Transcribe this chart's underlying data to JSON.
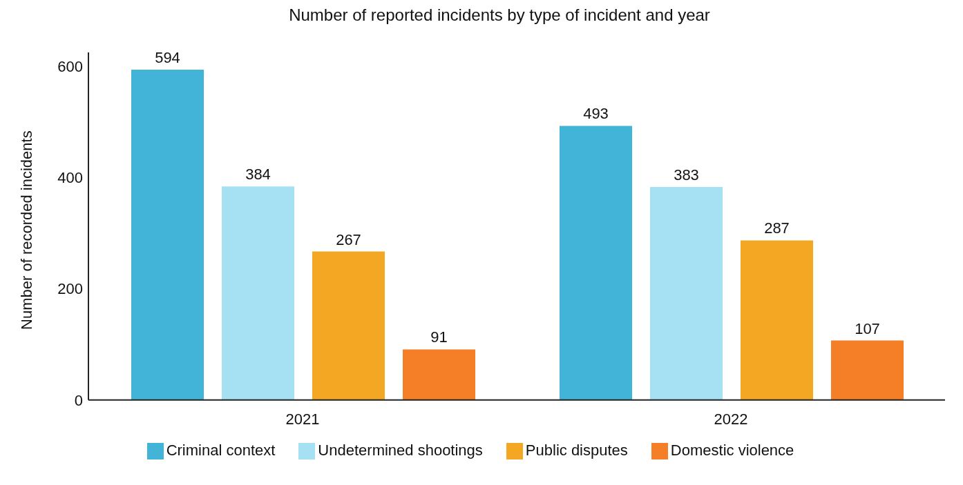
{
  "chart_data": {
    "type": "bar",
    "title": "Number of reported incidents by type of incident and year",
    "ylabel": "Number of recorded incidents",
    "categories": [
      "2021",
      "2022"
    ],
    "series": [
      {
        "name": "Criminal context",
        "color": "#42b4d8",
        "values": [
          594,
          493
        ]
      },
      {
        "name": "Undetermined shootings",
        "color": "#a6e1f3",
        "values": [
          384,
          383
        ]
      },
      {
        "name": "Public disputes",
        "color": "#f4a723",
        "values": [
          267,
          287
        ]
      },
      {
        "name": "Domestic violence",
        "color": "#f47f26",
        "values": [
          91,
          107
        ]
      }
    ],
    "ylim": [
      0,
      625
    ],
    "yticks": [
      0,
      200,
      400,
      600
    ],
    "grid": false,
    "legend": "bottom",
    "data_labels": true
  }
}
